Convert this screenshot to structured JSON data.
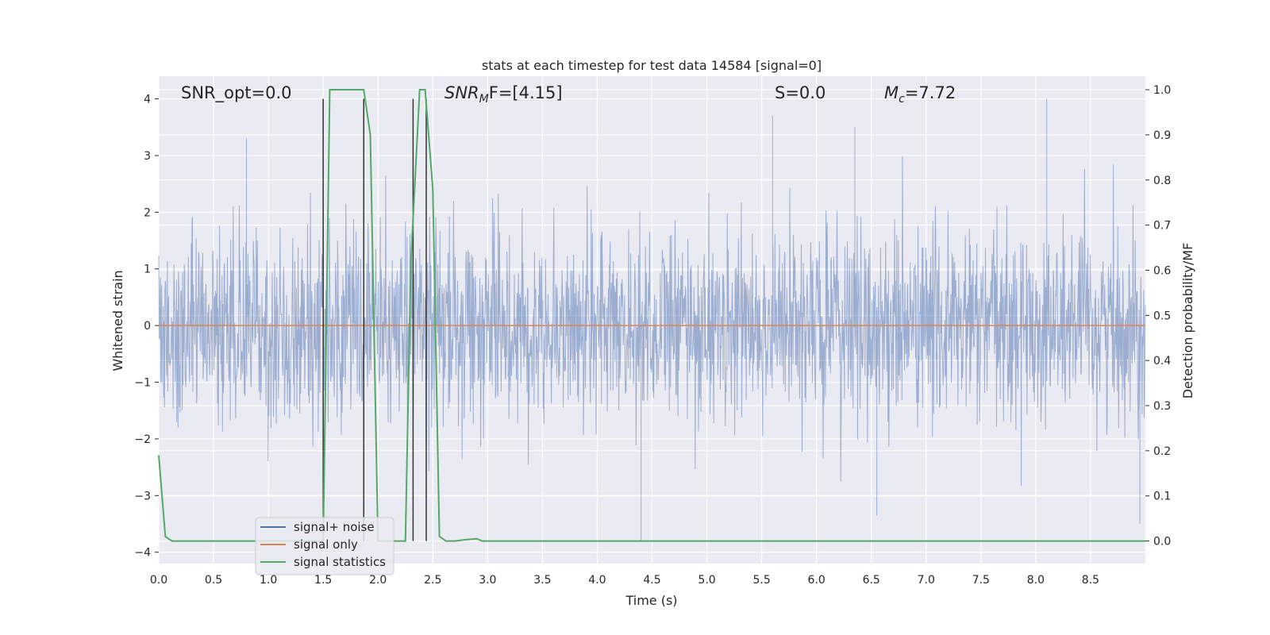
{
  "chart_data": {
    "type": "line",
    "title": "stats at each timestep for test data 14584 [signal=0]",
    "xlabel": "Time (s)",
    "ylabel_left": "Whitened strain",
    "ylabel_right": "Detection probability/MF",
    "xlim": [
      0.0,
      9.0
    ],
    "ylim_left": [
      -4.2,
      4.4
    ],
    "ylim_right": [
      -0.05,
      1.03
    ],
    "x_ticks": [
      "0.0",
      "0.5",
      "1.0",
      "1.5",
      "2.0",
      "2.5",
      "3.0",
      "3.5",
      "4.0",
      "4.5",
      "5.0",
      "5.5",
      "6.0",
      "6.5",
      "7.0",
      "7.5",
      "8.0",
      "8.5"
    ],
    "y_ticks_left": [
      "4",
      "3",
      "2",
      "1",
      "0",
      "−1",
      "−2",
      "−3",
      "−4"
    ],
    "y_ticks_right": [
      "1.0",
      "0.9",
      "0.8",
      "0.7",
      "0.6",
      "0.5",
      "0.4",
      "0.3",
      "0.2",
      "0.1",
      "0.0"
    ],
    "grid": true,
    "background": "#eaeaf2",
    "annotations": {
      "snr_opt": "SNR_opt=0.0",
      "snr_mf_base": "SNR",
      "snr_mf_sub": "M",
      "snr_mf_rest": "F=[4.15]",
      "s_val": "S=0.0",
      "mc_base": "M",
      "mc_sub": "c",
      "mc_rest": "=7.72"
    },
    "series": [
      {
        "name": "signal+ noise",
        "color": "#4c72b0",
        "axis": "left",
        "approx_std": 0.85,
        "notable_spikes": [
          {
            "x": 0.8,
            "y": 3.3
          },
          {
            "x": 1.5,
            "y": -2.5
          },
          {
            "x": 4.4,
            "y": -3.8
          },
          {
            "x": 5.6,
            "y": 3.7
          },
          {
            "x": 6.35,
            "y": 3.5
          },
          {
            "x": 8.1,
            "y": 4.0
          },
          {
            "x": 6.55,
            "y": -3.35
          },
          {
            "x": 8.95,
            "y": -3.5
          }
        ]
      },
      {
        "name": "signal only",
        "color": "#dd8452",
        "axis": "left",
        "x": [
          0.0,
          9.0
        ],
        "y": [
          0.0,
          0.0
        ]
      },
      {
        "name": "signal statistics",
        "color": "#55a868",
        "axis": "right",
        "x": [
          0.0,
          0.06,
          0.12,
          1.5,
          1.56,
          1.87,
          1.93,
          2.0,
          2.05,
          2.25,
          2.3,
          2.38,
          2.43,
          2.5,
          2.56,
          2.62,
          2.7,
          2.8,
          2.9,
          2.95,
          9.0
        ],
        "y": [
          0.19,
          0.01,
          0.0,
          0.0,
          1.0,
          1.0,
          0.9,
          0.0,
          0.0,
          0.0,
          0.62,
          1.0,
          1.0,
          0.78,
          0.01,
          0.0,
          0.0,
          0.003,
          0.005,
          0.0,
          0.0
        ]
      }
    ],
    "vertical_markers": [
      {
        "x": 1.5,
        "y_top": 4.0,
        "color": "#333333"
      },
      {
        "x": 1.87,
        "y_top": 4.0,
        "color": "#333333"
      },
      {
        "x": 2.32,
        "y_top": 4.0,
        "color": "#333333"
      },
      {
        "x": 2.44,
        "y_top": 4.0,
        "color": "#333333"
      }
    ],
    "legend": {
      "position": "lower-left",
      "entries": [
        {
          "label": "signal+ noise",
          "color": "#4c72b0"
        },
        {
          "label": "signal only",
          "color": "#dd8452"
        },
        {
          "label": "signal statistics",
          "color": "#55a868"
        }
      ]
    }
  }
}
